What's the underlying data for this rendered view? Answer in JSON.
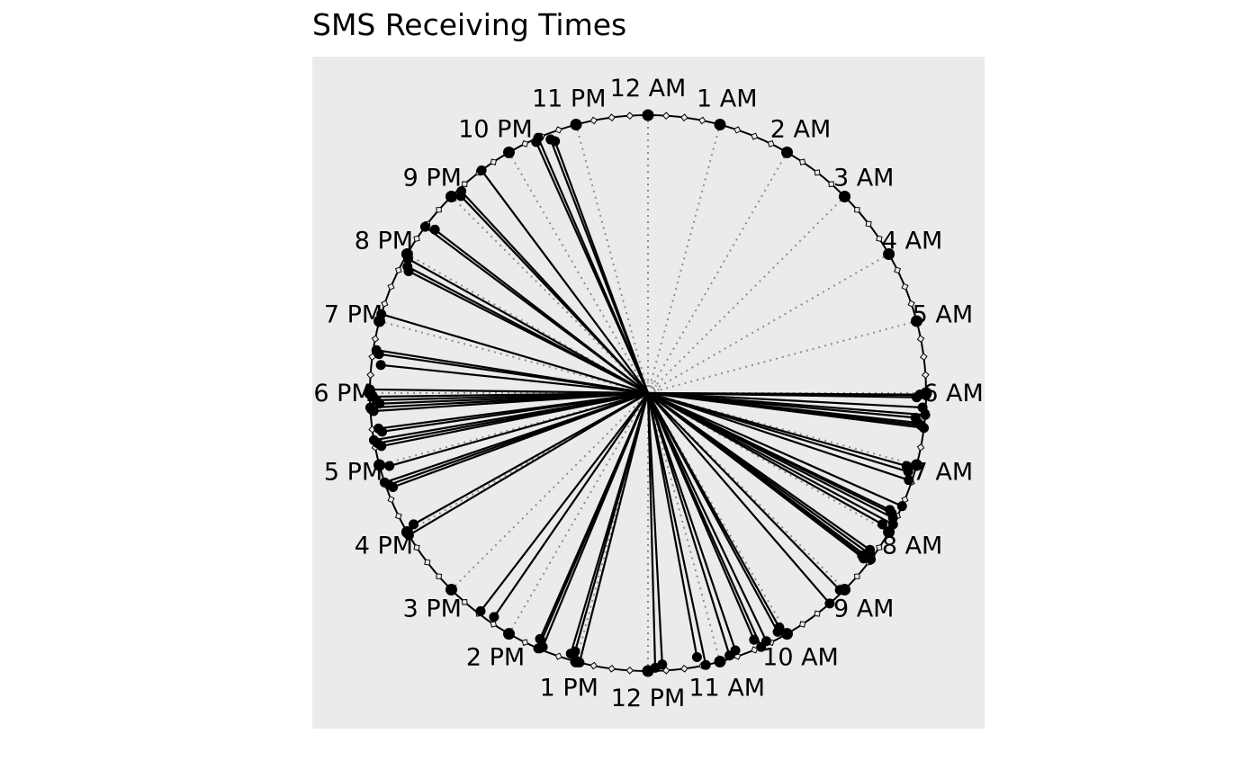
{
  "chart_data": {
    "type": "circular",
    "title": "SMS Receiving Times",
    "tick_labels": [
      "12 AM",
      "1 AM",
      "2 AM",
      "3 AM",
      "4 AM",
      "5 AM",
      "6 AM",
      "7 AM",
      "8 AM",
      "9 AM",
      "10 AM",
      "11 AM",
      "12 PM",
      "1 PM",
      "2 PM",
      "3 PM",
      "4 PM",
      "5 PM",
      "6 PM",
      "7 PM",
      "8 PM",
      "9 PM",
      "10 PM",
      "11 PM"
    ],
    "period_hours": 24,
    "observations_hours": [
      6.03,
      6.06,
      6.02,
      6.2,
      6.3,
      6.35,
      6.42,
      6.45,
      6.48,
      7.05,
      7.12,
      7.23,
      7.6,
      7.72,
      7.75,
      7.8,
      7.88,
      7.95,
      8.35,
      8.4,
      8.45,
      8.48,
      8.5,
      9.05,
      9.28,
      10.05,
      10.1,
      10.3,
      10.4,
      10.45,
      10.75,
      10.85,
      11.2,
      11.3,
      11.8,
      11.9,
      12.95,
      13.05,
      13.1,
      13.5,
      13.55,
      13.58,
      14.3,
      14.5,
      15.95,
      16.05,
      16.65,
      16.7,
      16.75,
      16.95,
      17.25,
      17.3,
      17.35,
      17.45,
      17.5,
      17.75,
      17.8,
      17.85,
      17.9,
      17.95,
      18.05,
      18.4,
      18.55,
      18.6,
      19.1,
      19.8,
      19.85,
      19.95,
      20.45,
      20.5,
      21.1,
      21.15,
      22.45,
      22.65,
      22.6,
      22.4,
      21.55
    ],
    "mean_direction_hours": null,
    "reference_lines": "dotted radial line at every hour",
    "grid": false
  }
}
